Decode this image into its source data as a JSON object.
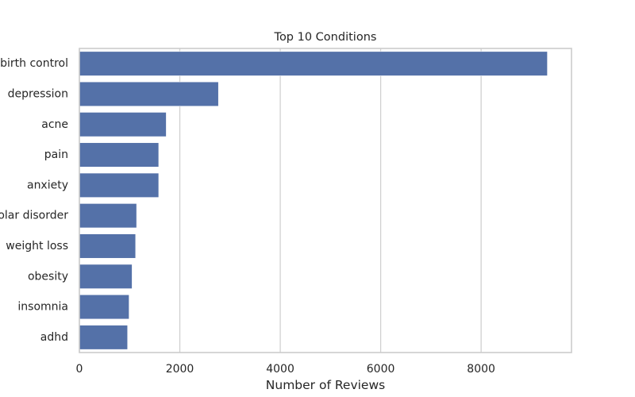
{
  "chart_data": {
    "type": "bar",
    "orientation": "horizontal",
    "title": "Top 10 Conditions",
    "xlabel": "Number of Reviews",
    "ylabel": "",
    "categories": [
      "birth control",
      "depression",
      "acne",
      "pain",
      "anxiety",
      "bipolar disorder",
      "weight loss",
      "obesity",
      "insomnia",
      "adhd"
    ],
    "values": [
      9320,
      2770,
      1730,
      1580,
      1580,
      1140,
      1120,
      1050,
      990,
      960
    ],
    "xlim": [
      0,
      9800
    ],
    "xticks": [
      0,
      2000,
      4000,
      6000,
      8000
    ],
    "grid": "vertical",
    "legend": "none",
    "colors": {
      "bar": "#5471a8",
      "grid": "#d0d0d0",
      "frame": "#cccccc",
      "text": "#262626"
    }
  }
}
